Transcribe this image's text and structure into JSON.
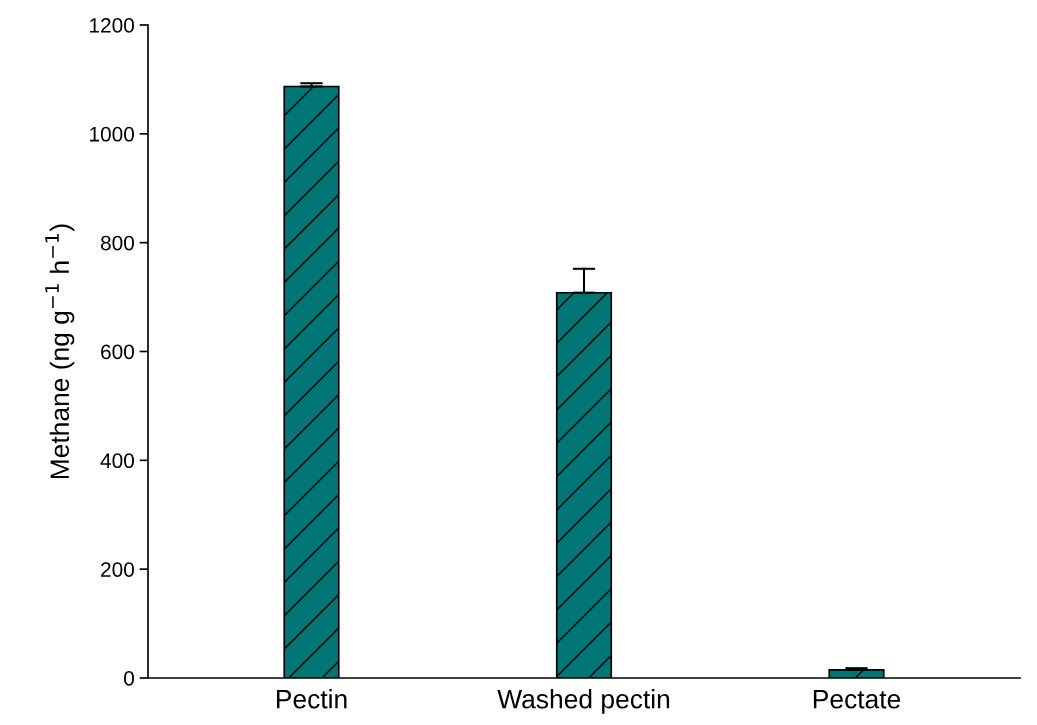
{
  "chart_data": {
    "type": "bar",
    "ylabel": "Methane (ng g$^{−1}$ h$^{−1}$)",
    "categories": [
      "Pectin",
      "Washed pectin",
      "Pectate"
    ],
    "values": [
      1087,
      708,
      15
    ],
    "errors": [
      6,
      44,
      3
    ],
    "color": "#007575",
    "ylim": [
      0,
      1200
    ],
    "yticks": [
      0,
      200,
      400,
      600,
      800,
      1000,
      1200
    ],
    "grid": false,
    "legend": false
  }
}
